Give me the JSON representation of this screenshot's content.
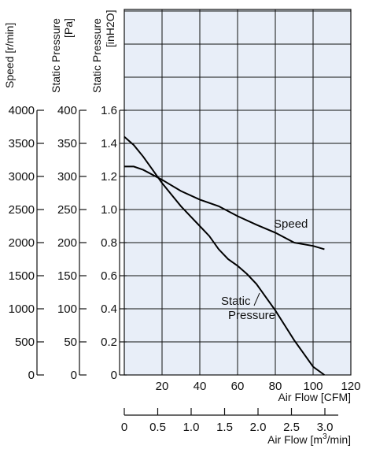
{
  "chart_data": {
    "type": "line",
    "background_color": "#e8eef8",
    "grid": true,
    "x_axes": [
      {
        "label": "Air Flow [CFM]",
        "range": [
          0,
          120
        ],
        "ticks": [
          20,
          40,
          60,
          80,
          100,
          120
        ]
      },
      {
        "label_main": "Air Flow [m",
        "label_sup": "3",
        "label_end": "/min]",
        "range": [
          0,
          3.4
        ],
        "ticks": [
          "0",
          "0.5",
          "1.0",
          "1.5",
          "2.0",
          "2.5",
          "3.0"
        ]
      }
    ],
    "y_axes": [
      {
        "label": "Speed [r/min]",
        "range": [
          0,
          4000
        ],
        "ticks": [
          "0",
          "500",
          "1000",
          "1500",
          "2000",
          "2500",
          "3000",
          "3500",
          "4000"
        ]
      },
      {
        "label": "Static Pressure [Pa]",
        "label_line1": "Static Pressure",
        "label_line2": "[Pa]",
        "range": [
          0,
          400
        ],
        "ticks": [
          "0",
          "50",
          "100",
          "150",
          "200",
          "250",
          "300",
          "350",
          "400"
        ]
      },
      {
        "label": "Static Pressure [inH2O]",
        "label_line1": "Static Pressure",
        "label_line2": "[inH2O]",
        "range": [
          0,
          1.6
        ],
        "ticks": [
          "0",
          "0.2",
          "0.4",
          "0.6",
          "0.8",
          "1.0",
          "1.2",
          "1.4",
          "1.6"
        ]
      }
    ],
    "series": [
      {
        "name": "Speed",
        "axis": "Speed [r/min]",
        "x": [
          0,
          5,
          10,
          20,
          30,
          40,
          50,
          60,
          70,
          80,
          90,
          100,
          106
        ],
        "y": [
          3150,
          3150,
          3100,
          2950,
          2780,
          2650,
          2550,
          2400,
          2270,
          2150,
          2000,
          1950,
          1900
        ]
      },
      {
        "name_line1": "Static",
        "name_line2": "Pressure",
        "axis": "Static Pressure [inH2O]",
        "x": [
          0,
          5,
          10,
          15,
          20,
          25,
          30,
          35,
          40,
          45,
          50,
          55,
          60,
          65,
          70,
          75,
          80,
          85,
          90,
          95,
          100,
          106
        ],
        "y": [
          1.44,
          1.39,
          1.32,
          1.24,
          1.16,
          1.09,
          1.02,
          0.96,
          0.9,
          0.84,
          0.76,
          0.7,
          0.66,
          0.61,
          0.55,
          0.47,
          0.39,
          0.3,
          0.21,
          0.13,
          0.05,
          0.0
        ]
      }
    ],
    "grid_extra_rows_above": 4
  }
}
